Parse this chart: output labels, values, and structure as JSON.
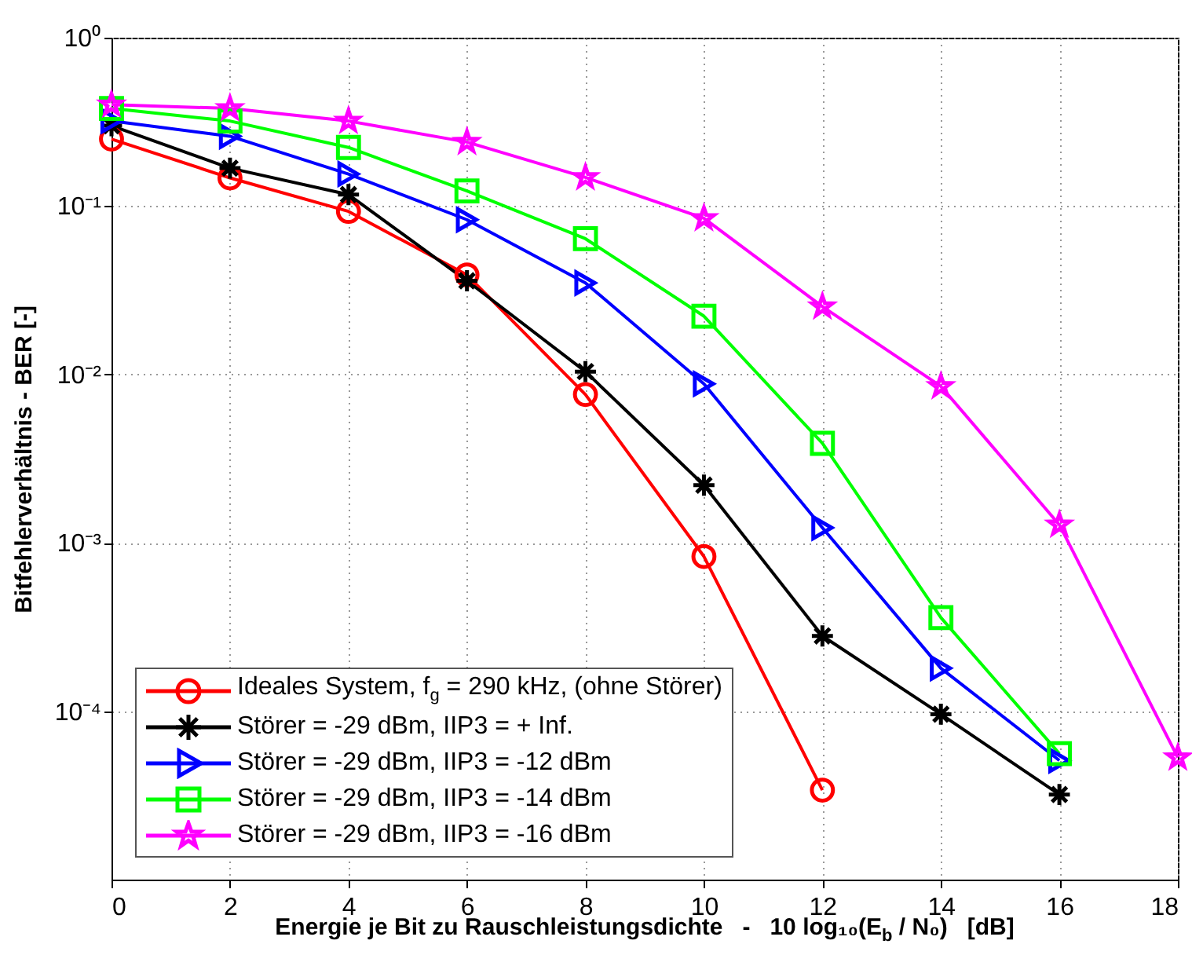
{
  "chart_data": {
    "type": "line",
    "xlabel": "Energie je Bit zu Rauschleistungsdichte   -   10 log₁₀(E$_{b}$ / N₀)   [dB]",
    "ylabel": "Bitfehlerverhältnis   -   BER [-]",
    "log": "y",
    "grid": true,
    "legend": "bottom left",
    "line_style": "solid",
    "xlim": [
      0,
      18
    ],
    "xticks": [
      0,
      2,
      4,
      6,
      8,
      10,
      12,
      14,
      16,
      18
    ],
    "ylim": [
      1e-05,
      1
    ],
    "yticks": [
      {
        "value": 1,
        "label": "10⁰"
      },
      {
        "value": 0.1,
        "label": "10⁻¹"
      },
      {
        "value": 0.01,
        "label": "10⁻²"
      },
      {
        "value": 0.001,
        "label": "10⁻³"
      },
      {
        "value": 0.0001,
        "label": "10⁻⁴"
      }
    ],
    "series": [
      {
        "name": "Ideales System, f$_{g}$ = 290 kHz, (ohne Störer)",
        "color": "#ff0000",
        "marker": "circle",
        "x": [
          0,
          2,
          4,
          6,
          8,
          10,
          12
        ],
        "values": [
          0.25,
          0.147,
          0.093,
          0.039,
          0.0076,
          0.00083,
          3.4e-05
        ]
      },
      {
        "name": "Störer = -29 dBm, IIP3 = + Inf.",
        "color": "#000000",
        "marker": "cross",
        "x": [
          0,
          2,
          4,
          6,
          8,
          10,
          12,
          14,
          16
        ],
        "values": [
          0.3,
          0.168,
          0.117,
          0.036,
          0.0104,
          0.0022,
          0.00028,
          9.6e-05,
          3.2e-05
        ]
      },
      {
        "name": "Störer = -29 dBm, IIP3 = -12 dBm",
        "color": "#0000ff",
        "marker": "triangle",
        "x": [
          0,
          2,
          4,
          6,
          8,
          10,
          12,
          14,
          16
        ],
        "values": [
          0.32,
          0.26,
          0.155,
          0.083,
          0.035,
          0.0088,
          0.00123,
          0.00018,
          5.1e-05
        ]
      },
      {
        "name": "Störer = -29 dBm, IIP3 = -14 dBm",
        "color": "#00ff00",
        "marker": "square",
        "x": [
          0,
          2,
          4,
          6,
          8,
          10,
          12,
          14,
          16
        ],
        "values": [
          0.38,
          0.32,
          0.223,
          0.123,
          0.064,
          0.0222,
          0.0039,
          0.00036,
          5.6e-05
        ]
      },
      {
        "name": "Störer = -29 dBm, IIP3 = -16 dBm",
        "color": "#ff00ff",
        "marker": "star",
        "x": [
          0,
          2,
          4,
          6,
          8,
          10,
          12,
          14,
          16,
          18
        ],
        "values": [
          0.4,
          0.38,
          0.32,
          0.24,
          0.148,
          0.0846,
          0.0253,
          0.0085,
          0.00128,
          5.3e-05
        ]
      }
    ]
  }
}
